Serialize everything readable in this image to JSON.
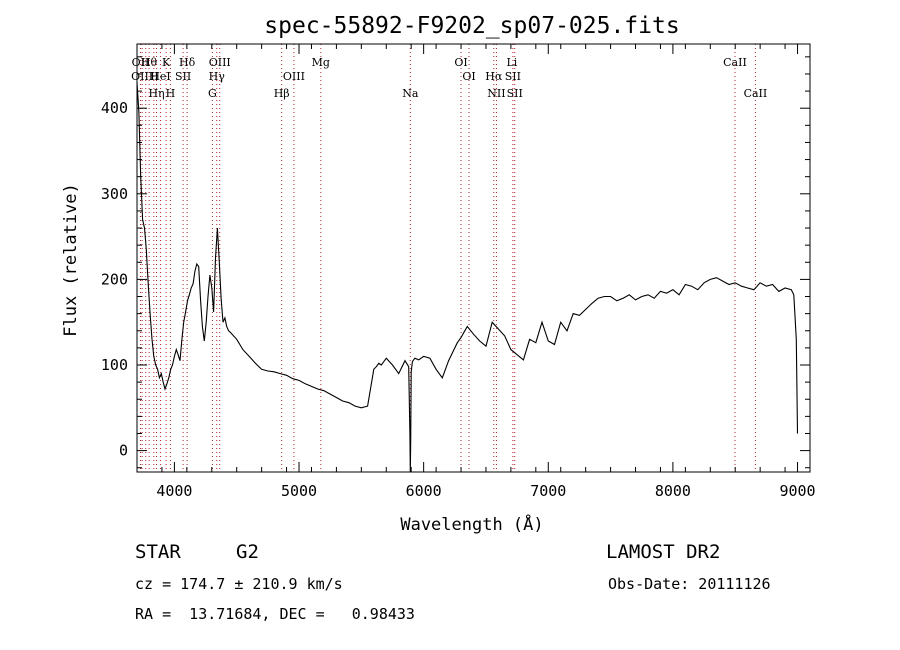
{
  "chart_data": {
    "type": "line",
    "title": "spec-55892-F9202_sp07-025.fits",
    "xlabel": "Wavelength (Å)",
    "ylabel": "Flux (relative)",
    "xlim": [
      3700,
      9100
    ],
    "ylim": [
      -25,
      475
    ],
    "xticks": [
      4000,
      5000,
      6000,
      7000,
      8000,
      9000
    ],
    "yticks": [
      0,
      100,
      200,
      300,
      400
    ],
    "grid": false,
    "series": [
      {
        "x": [
          3700,
          3715,
          3730,
          3745,
          3760,
          3775,
          3790,
          3805,
          3820,
          3835,
          3850,
          3865,
          3880,
          3895,
          3910,
          3925,
          3940,
          3955,
          3970,
          3985,
          4000,
          4015,
          4030,
          4045,
          4060,
          4075,
          4090,
          4105,
          4120,
          4135,
          4150,
          4165,
          4180,
          4195,
          4210,
          4225,
          4240,
          4255,
          4270,
          4285,
          4300,
          4315,
          4330,
          4345,
          4360,
          4375,
          4390,
          4405,
          4420,
          4435,
          4450,
          4500,
          4550,
          4600,
          4650,
          4700,
          4750,
          4800,
          4850,
          4900,
          4950,
          5000,
          5050,
          5100,
          5150,
          5200,
          5250,
          5300,
          5350,
          5400,
          5450,
          5500,
          5550,
          5600,
          5620,
          5640,
          5660,
          5700,
          5750,
          5800,
          5850,
          5880,
          5890,
          5893,
          5896,
          5900,
          5910,
          5930,
          5960,
          6000,
          6050,
          6100,
          6150,
          6200,
          6250,
          6270,
          6300,
          6330,
          6350,
          6400,
          6450,
          6500,
          6550,
          6600,
          6650,
          6700,
          6750,
          6800,
          6850,
          6900,
          6950,
          7000,
          7050,
          7100,
          7150,
          7200,
          7250,
          7300,
          7350,
          7400,
          7450,
          7500,
          7550,
          7600,
          7650,
          7700,
          7750,
          7800,
          7850,
          7900,
          7950,
          8000,
          8050,
          8100,
          8150,
          8200,
          8250,
          8300,
          8350,
          8400,
          8450,
          8500,
          8550,
          8600,
          8650,
          8700,
          8750,
          8800,
          8850,
          8900,
          8950,
          8970,
          8990,
          9000
        ],
        "y": [
          430,
          395,
          320,
          270,
          260,
          235,
          195,
          160,
          130,
          110,
          100,
          95,
          85,
          90,
          80,
          72,
          78,
          85,
          95,
          100,
          110,
          118,
          112,
          105,
          130,
          150,
          162,
          175,
          182,
          190,
          195,
          210,
          218,
          215,
          175,
          145,
          128,
          150,
          180,
          205,
          190,
          162,
          225,
          260,
          220,
          178,
          150,
          155,
          145,
          140,
          138,
          130,
          118,
          110,
          102,
          95,
          93,
          92,
          90,
          88,
          84,
          82,
          78,
          75,
          72,
          70,
          66,
          62,
          58,
          56,
          52,
          50,
          52,
          95,
          98,
          102,
          100,
          108,
          100,
          90,
          105,
          98,
          20,
          -25,
          10,
          92,
          104,
          108,
          106,
          110,
          108,
          95,
          85,
          105,
          120,
          126,
          132,
          140,
          145,
          136,
          128,
          122,
          150,
          142,
          134,
          118,
          112,
          106,
          130,
          126,
          150,
          128,
          124,
          150,
          140,
          160,
          158,
          165,
          172,
          178,
          180,
          180,
          175,
          178,
          182,
          176,
          180,
          182,
          178,
          186,
          184,
          188,
          182,
          194,
          192,
          188,
          196,
          200,
          202,
          198,
          194,
          196,
          192,
          190,
          188,
          196,
          192,
          194,
          186,
          190,
          188,
          182,
          130,
          20
        ]
      }
    ],
    "annotations": [
      {
        "text": "Hθ",
        "x": 3797
      },
      {
        "text": "K",
        "x": 3934
      },
      {
        "text": "Hδ",
        "x": 4102
      },
      {
        "text": "OIII",
        "x": 4364
      },
      {
        "text": "Mg",
        "x": 5175
      },
      {
        "text": "OI",
        "x": 6300
      },
      {
        "text": "Li",
        "x": 6708
      },
      {
        "text": "CaII",
        "x": 8498
      },
      {
        "text": "OII",
        "x": 3728
      },
      {
        "text": "H",
        "x": 3835
      },
      {
        "text": "HeI",
        "x": 3889
      },
      {
        "text": "SII",
        "x": 4070
      },
      {
        "text": "Hγ",
        "x": 4340
      },
      {
        "text": "OIII",
        "x": 4959
      },
      {
        "text": "OI",
        "x": 6364
      },
      {
        "text": "Hα",
        "x": 6563
      },
      {
        "text": "SII",
        "x": 6716
      },
      {
        "text": "OIII",
        "x": 3741
      },
      {
        "text": "Hη",
        "x": 3857
      },
      {
        "text": "H",
        "x": 3968
      },
      {
        "text": "G",
        "x": 4305
      },
      {
        "text": "Hβ",
        "x": 4861
      },
      {
        "text": "Na",
        "x": 5893
      },
      {
        "text": "NII",
        "x": 6584
      },
      {
        "text": "SII",
        "x": 6731
      },
      {
        "text": "CaII",
        "x": 8662
      }
    ],
    "line_markers": [
      3728,
      3741,
      3770,
      3797,
      3835,
      3857,
      3889,
      3934,
      3968,
      4070,
      4102,
      4305,
      4340,
      4364,
      4861,
      4959,
      5175,
      5893,
      6300,
      6364,
      6563,
      6584,
      6716,
      6731,
      8498,
      8662
    ]
  },
  "footer": {
    "object_class": "STAR",
    "subclass": "G2",
    "survey": "LAMOST DR2",
    "redshift": "cz = 174.7 ± 210.9 km/s",
    "obs_date": "Obs-Date: 20111126",
    "coords": "RA =  13.71684, DEC =   0.98433"
  }
}
